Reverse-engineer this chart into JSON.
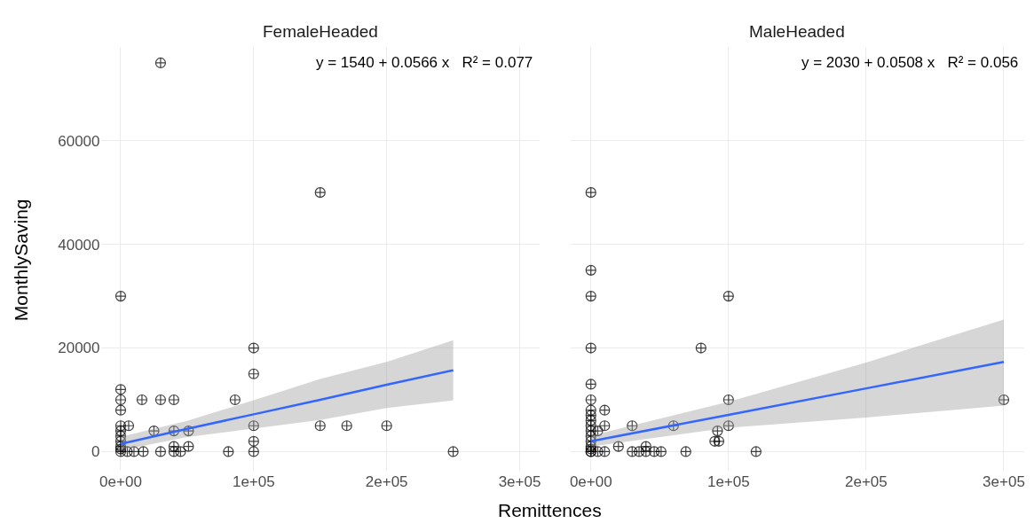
{
  "chart_data": [
    {
      "type": "scatter",
      "title": "FemaleHeaded",
      "xlabel": "Remittences",
      "ylabel": "MonthlySaving",
      "annotations": [
        "y = 1540 + 0.0566 x   R² = 0.077"
      ],
      "xlim": [
        -15000,
        315000
      ],
      "xticks": [
        {
          "value": 0,
          "label": "0e+00"
        },
        {
          "value": 100000,
          "label": "1e+05"
        },
        {
          "value": 200000,
          "label": "2e+05"
        },
        {
          "value": 300000,
          "label": "3e+05"
        }
      ],
      "ylim": [
        -3700,
        78000
      ],
      "yticks": [
        0,
        20000,
        40000,
        60000
      ],
      "grid": true,
      "marker": "cross",
      "series": [
        {
          "color": "#000000",
          "x": [
            0,
            0,
            0,
            0,
            0,
            0,
            0,
            0,
            0,
            0,
            0,
            16000,
            30000,
            40000,
            86000,
            100000,
            100000,
            100000,
            100000,
            100000,
            6000,
            25000,
            40000,
            51000,
            40000,
            51000,
            5000,
            10000,
            17000,
            30000,
            40000,
            45000,
            81000,
            30000,
            150000,
            150000,
            170000,
            200000,
            250000
          ],
          "values": [
            30000,
            12000,
            10000,
            8000,
            5000,
            4000,
            3000,
            2000,
            1000,
            500,
            0,
            10000,
            10000,
            10000,
            10000,
            20000,
            15000,
            5000,
            2000,
            0,
            5000,
            4000,
            4000,
            4000,
            1000,
            1000,
            0,
            0,
            0,
            0,
            0,
            0,
            0,
            75000,
            50000,
            5000,
            5000,
            5000,
            0
          ]
        },
        {
          "type": "line",
          "color": "#3366ff",
          "marker": "none",
          "x": [
            0,
            50000,
            100000,
            150000,
            200000,
            250000
          ],
          "values": [
            1500,
            4400,
            7200,
            10000,
            12900,
            15700
          ],
          "lower": [
            240,
            2800,
            4500,
            6100,
            8400,
            9900
          ],
          "upper": [
            2840,
            5940,
            9900,
            14000,
            17300,
            21500
          ]
        }
      ]
    },
    {
      "type": "scatter",
      "title": "MaleHeaded",
      "tick_labels": "x",
      "annotations": [
        "y = 2030 + 0.0508 x   R² = 0.056"
      ],
      "xlim": [
        -15000,
        315000
      ],
      "xticks": [
        {
          "value": 0,
          "label": "0e+00"
        },
        {
          "value": 100000,
          "label": "1e+05"
        },
        {
          "value": 200000,
          "label": "2e+05"
        },
        {
          "value": 300000,
          "label": "3e+05"
        }
      ],
      "ylim": [
        -3700,
        78000
      ],
      "yticks": [
        0,
        20000,
        40000,
        60000
      ],
      "grid": true,
      "marker": "cross",
      "series": [
        {
          "color": "#000000",
          "x": [
            0,
            0,
            0,
            0,
            0,
            0,
            0,
            0,
            0,
            0,
            0,
            0,
            0,
            0,
            0,
            0,
            0,
            100000,
            80000,
            10000,
            10000,
            5000,
            30000,
            60000,
            100000,
            100000,
            92000,
            90000,
            93000,
            5000,
            10000,
            20000,
            30000,
            35000,
            40000,
            40000,
            46000,
            51000,
            69000,
            120000,
            300000
          ],
          "values": [
            50000,
            35000,
            30000,
            20000,
            13000,
            10000,
            8000,
            7000,
            6000,
            5000,
            4000,
            3000,
            2000,
            1000,
            500,
            0,
            0,
            30000,
            20000,
            8000,
            5000,
            4000,
            5000,
            5000,
            10000,
            5000,
            4000,
            2000,
            2000,
            0,
            0,
            1000,
            0,
            0,
            0,
            1000,
            0,
            0,
            0,
            0,
            10000
          ]
        },
        {
          "type": "line",
          "color": "#3366ff",
          "marker": "none",
          "x": [
            0,
            100000,
            200000,
            300000
          ],
          "values": [
            2000,
            7100,
            12200,
            17300
          ],
          "lower": [
            1000,
            4600,
            6600,
            8900
          ],
          "upper": [
            3060,
            9600,
            17200,
            25500
          ]
        }
      ]
    }
  ]
}
